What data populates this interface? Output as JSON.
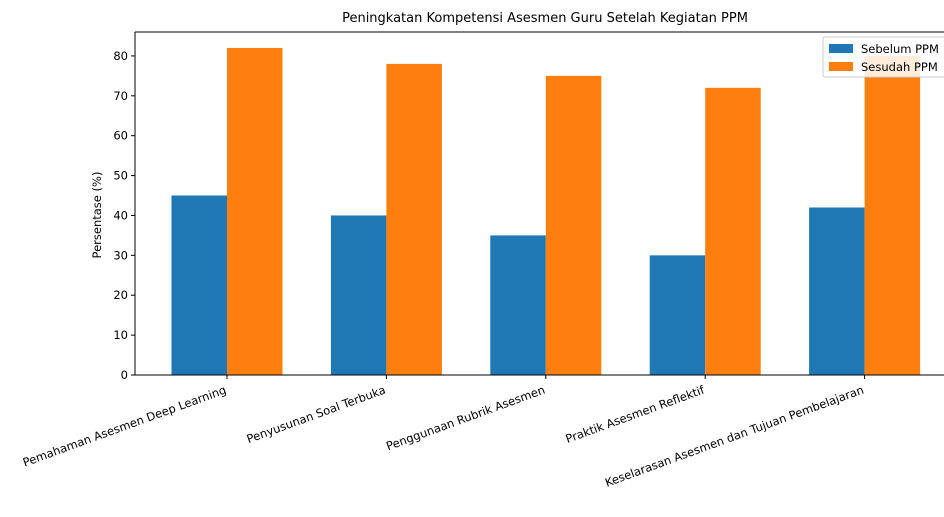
{
  "chart_data": {
    "type": "bar",
    "title": "Peningkatan Kompetensi Asesmen Guru Setelah Kegiatan PPM",
    "xlabel": "",
    "ylabel": "Persentase (%)",
    "ylim": [
      0,
      86
    ],
    "yticks": [
      0,
      10,
      20,
      30,
      40,
      50,
      60,
      70,
      80
    ],
    "grid": false,
    "legend_position": "top-right",
    "categories": [
      "Pemahaman Asesmen Deep Learning",
      "Penyusunan Soal Terbuka",
      "Penggunaan Rubrik Asesmen",
      "Praktik Asesmen Reflektif",
      "Keselarasan Asesmen dan Tujuan Pembelajaran"
    ],
    "series": [
      {
        "name": "Sebelum PPM",
        "color": "#1f77b4",
        "values": [
          45,
          40,
          35,
          30,
          42
        ]
      },
      {
        "name": "Sesudah PPM",
        "color": "#ff7f0e",
        "values": [
          82,
          78,
          75,
          72,
          80
        ]
      }
    ]
  }
}
